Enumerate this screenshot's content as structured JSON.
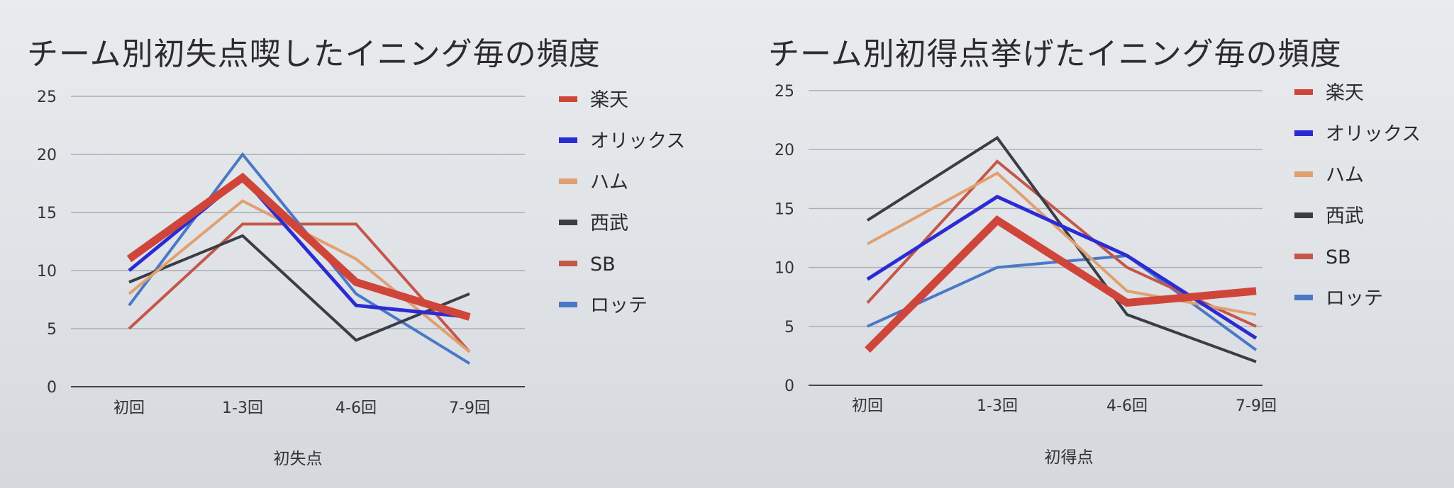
{
  "chart_data": [
    {
      "type": "line",
      "title": "チーム別初失点喫したイニング毎の頻度",
      "xlabel": "初失点",
      "ylabel": "",
      "categories": [
        "初回",
        "1-3回",
        "4-6回",
        "7-9回"
      ],
      "ylim": [
        0,
        25
      ],
      "yticks": [
        0,
        5,
        10,
        15,
        20,
        25
      ],
      "grid": true,
      "legend_position": "right",
      "series": [
        {
          "name": "楽天",
          "color": "#d0453a",
          "values": [
            11,
            18,
            9,
            6
          ]
        },
        {
          "name": "オリックス",
          "color": "#2b2bd6",
          "values": [
            10,
            18,
            7,
            6
          ]
        },
        {
          "name": "ハム",
          "color": "#e0a070",
          "values": [
            8,
            16,
            11,
            3
          ]
        },
        {
          "name": "西武",
          "color": "#3a3d45",
          "values": [
            9,
            13,
            4,
            8
          ]
        },
        {
          "name": "SB",
          "color": "#c4564a",
          "values": [
            5,
            14,
            14,
            3
          ]
        },
        {
          "name": "ロッテ",
          "color": "#4a78c8",
          "values": [
            7,
            20,
            8,
            2
          ]
        }
      ]
    },
    {
      "type": "line",
      "title": "チーム別初得点挙げたイニング毎の頻度",
      "xlabel": "初得点",
      "ylabel": "",
      "categories": [
        "初回",
        "1-3回",
        "4-6回",
        "7-9回"
      ],
      "ylim": [
        0,
        25
      ],
      "yticks": [
        0,
        5,
        10,
        15,
        20,
        25
      ],
      "grid": true,
      "legend_position": "right",
      "series": [
        {
          "name": "楽天",
          "color": "#d0453a",
          "values": [
            3,
            14,
            7,
            8
          ]
        },
        {
          "name": "オリックス",
          "color": "#2b2bd6",
          "values": [
            9,
            16,
            11,
            4
          ]
        },
        {
          "name": "ハム",
          "color": "#e0a070",
          "values": [
            12,
            18,
            8,
            6
          ]
        },
        {
          "name": "西武",
          "color": "#3a3d45",
          "values": [
            14,
            21,
            6,
            2
          ]
        },
        {
          "name": "SB",
          "color": "#c4564a",
          "values": [
            7,
            19,
            10,
            5
          ]
        },
        {
          "name": "ロッテ",
          "color": "#4a78c8",
          "values": [
            5,
            10,
            11,
            3
          ]
        }
      ]
    }
  ]
}
